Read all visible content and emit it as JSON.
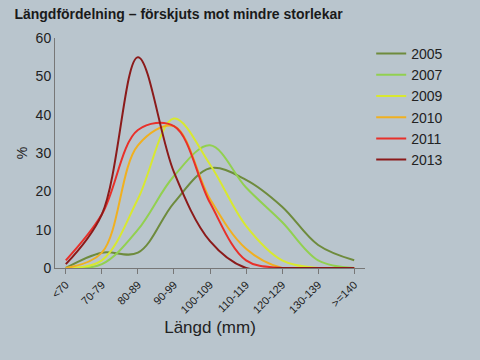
{
  "chart_data": {
    "type": "line",
    "title": "Längdfördelning – förskjuts mot mindre storlekar",
    "xlabel": "Längd (mm)",
    "ylabel": "%",
    "categories": [
      "<70",
      "70-79",
      "80-89",
      "90-99",
      "100-109",
      "110-119",
      "120-129",
      "130-139",
      ">=140"
    ],
    "series": [
      {
        "name": "2005",
        "color": "#6e8b3d",
        "values": [
          0,
          4,
          4,
          17,
          26,
          23,
          16,
          6,
          2
        ]
      },
      {
        "name": "2007",
        "color": "#92d050",
        "values": [
          0,
          1,
          10,
          24,
          32,
          21,
          12,
          2,
          0
        ]
      },
      {
        "name": "2009",
        "color": "#d8e830",
        "values": [
          0,
          2,
          18,
          39,
          27,
          11,
          2,
          0,
          0
        ]
      },
      {
        "name": "2010",
        "color": "#f0b020",
        "values": [
          0,
          4,
          32,
          37,
          18,
          5,
          0,
          0,
          0
        ]
      },
      {
        "name": "2011",
        "color": "#e8302a",
        "values": [
          2,
          14,
          36,
          37,
          17,
          2,
          0,
          0,
          0
        ]
      },
      {
        "name": "2013",
        "color": "#8b1a1a",
        "values": [
          1,
          14,
          55,
          25,
          7,
          0,
          0,
          0,
          0
        ]
      }
    ],
    "ylim": [
      0,
      60
    ],
    "yticks": [
      0,
      10,
      20,
      30,
      40,
      50,
      60
    ],
    "grid": false,
    "legend": "right"
  }
}
